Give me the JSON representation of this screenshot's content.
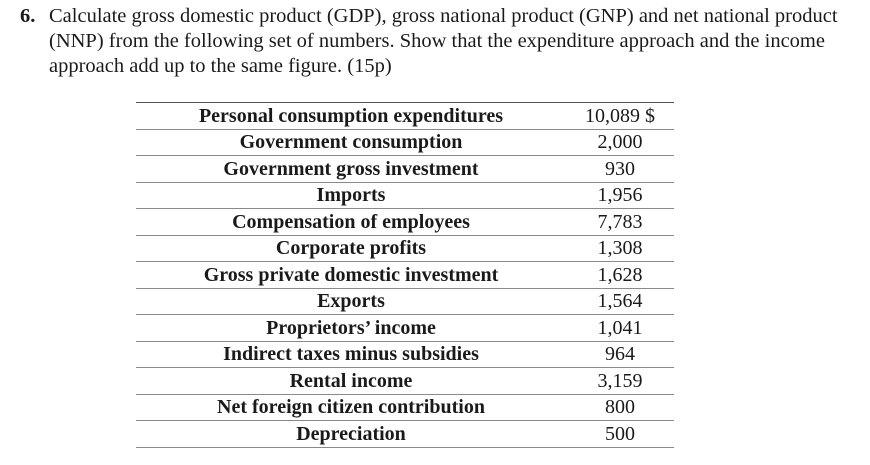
{
  "question": {
    "number": "6.",
    "text": "Calculate gross domestic product (GDP), gross national product (GNP) and net national product (NNP) from the following set of numbers. Show that the expenditure approach and the income approach add up to the same figure. (15p)"
  },
  "table": {
    "rows": [
      {
        "label": "Personal consumption expenditures",
        "value": "10,089 $"
      },
      {
        "label": "Government consumption",
        "value": "2,000"
      },
      {
        "label": "Government gross investment",
        "value": "930"
      },
      {
        "label": "Imports",
        "value": "1,956"
      },
      {
        "label": "Compensation of employees",
        "value": "7,783"
      },
      {
        "label": "Corporate profits",
        "value": "1,308"
      },
      {
        "label": "Gross private domestic investment",
        "value": "1,628"
      },
      {
        "label": "Exports",
        "value": "1,564"
      },
      {
        "label": "Proprietors’ income",
        "value": "1,041"
      },
      {
        "label": "Indirect taxes minus subsidies",
        "value": "964"
      },
      {
        "label": "Rental income",
        "value": "3,159"
      },
      {
        "label": "Net foreign citizen contribution",
        "value": "800"
      },
      {
        "label": "Depreciation",
        "value": "500"
      }
    ]
  }
}
